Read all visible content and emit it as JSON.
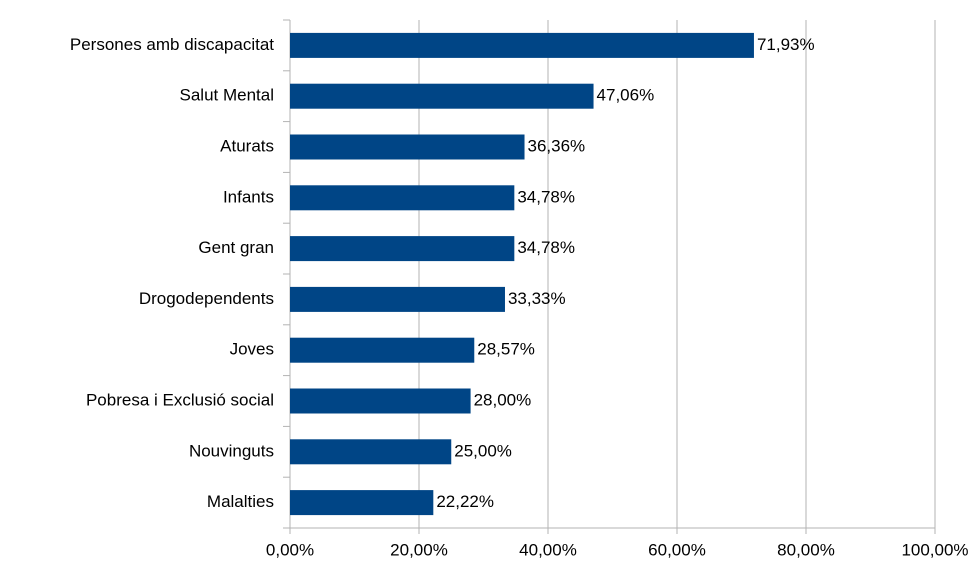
{
  "chart_data": {
    "type": "bar",
    "orientation": "horizontal",
    "categories": [
      "Persones amb discapacitat",
      "Salut Mental",
      "Aturats",
      "Infants",
      "Gent gran",
      "Drogodependents",
      "Joves",
      "Pobresa i Exclusió social",
      "Nouvinguts",
      "Malalties"
    ],
    "values": [
      71.93,
      47.06,
      36.36,
      34.78,
      34.78,
      33.33,
      28.57,
      28.0,
      25.0,
      22.22
    ],
    "value_labels": [
      "71,93%",
      "47,06%",
      "36,36%",
      "34,78%",
      "34,78%",
      "33,33%",
      "28,57%",
      "28,00%",
      "25,00%",
      "22,22%"
    ],
    "color": "#004586",
    "xlim": [
      0,
      100
    ],
    "xticks": [
      {
        "value": 0,
        "label": "0,00%"
      },
      {
        "value": 20,
        "label": "20,00%"
      },
      {
        "value": 40,
        "label": "40,00%"
      },
      {
        "value": 60,
        "label": "60,00%"
      },
      {
        "value": 80,
        "label": "80,00%"
      },
      {
        "value": 100,
        "label": "100,00%"
      }
    ],
    "grid": true
  }
}
